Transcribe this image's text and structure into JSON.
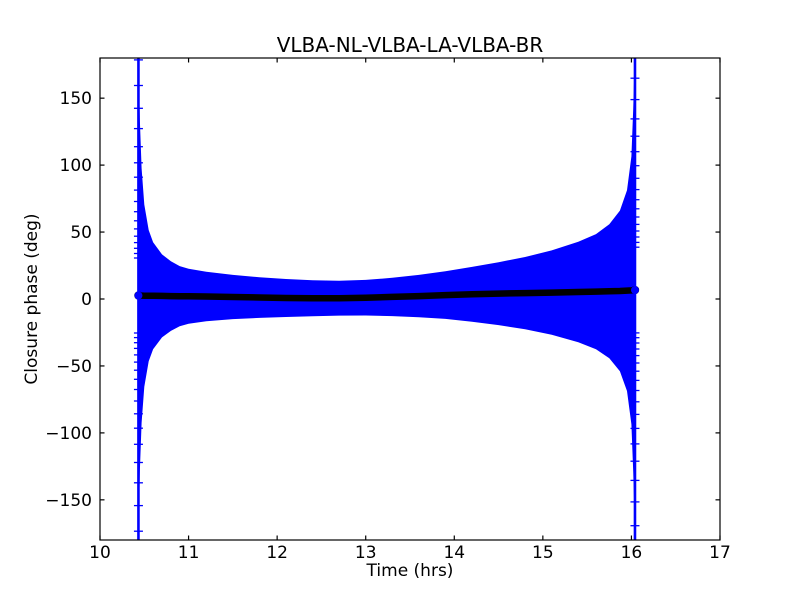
{
  "chart_data": {
    "type": "line",
    "plot_kind": "errorbar",
    "title": "VLBA-NL-VLBA-LA-VLBA-BR",
    "xlabel": "Time (hrs)",
    "ylabel": "Closure phase (deg)",
    "xlim": [
      10,
      17
    ],
    "ylim": [
      -180,
      180
    ],
    "xticks": [
      10,
      11,
      12,
      13,
      14,
      15,
      16,
      17
    ],
    "xtick_labels": [
      "10",
      "11",
      "12",
      "13",
      "14",
      "15",
      "16",
      "17"
    ],
    "yticks": [
      -150,
      -100,
      -50,
      0,
      50,
      100,
      150
    ],
    "ytick_labels": [
      "−150",
      "−100",
      "−50",
      "0",
      "50",
      "100",
      "150"
    ],
    "grid": false,
    "legend": null,
    "background": "#ffffff",
    "band_color": "#0000ff",
    "marker_color": "#000000",
    "frame_color": "#000000",
    "x_data_range": [
      10.434,
      16.04
    ],
    "points_meaning": "t = time in hrs, v = closure phase (deg), e = error-bar half-width (deg)",
    "points": [
      {
        "t": 10.434,
        "v": 2.6,
        "e": 181
      },
      {
        "t": 10.45,
        "v": 2.6,
        "e": 130
      },
      {
        "t": 10.47,
        "v": 2.55,
        "e": 95
      },
      {
        "t": 10.5,
        "v": 2.5,
        "e": 68
      },
      {
        "t": 10.55,
        "v": 2.45,
        "e": 49
      },
      {
        "t": 10.6,
        "v": 2.4,
        "e": 40
      },
      {
        "t": 10.7,
        "v": 2.3,
        "e": 31
      },
      {
        "t": 10.8,
        "v": 2.2,
        "e": 26
      },
      {
        "t": 10.9,
        "v": 2.1,
        "e": 22.5
      },
      {
        "t": 11.0,
        "v": 2.05,
        "e": 20.5
      },
      {
        "t": 11.2,
        "v": 1.85,
        "e": 18.5
      },
      {
        "t": 11.5,
        "v": 1.5,
        "e": 16.5
      },
      {
        "t": 11.8,
        "v": 1.1,
        "e": 15.2
      },
      {
        "t": 12.1,
        "v": 0.75,
        "e": 14.2
      },
      {
        "t": 12.4,
        "v": 0.55,
        "e": 13.4
      },
      {
        "t": 12.7,
        "v": 0.6,
        "e": 13.0
      },
      {
        "t": 13.0,
        "v": 0.95,
        "e": 13.3
      },
      {
        "t": 13.3,
        "v": 1.55,
        "e": 14.3
      },
      {
        "t": 13.6,
        "v": 2.2,
        "e": 15.8
      },
      {
        "t": 13.9,
        "v": 2.9,
        "e": 17.8
      },
      {
        "t": 14.2,
        "v": 3.5,
        "e": 20.5
      },
      {
        "t": 14.5,
        "v": 4.0,
        "e": 23.5
      },
      {
        "t": 14.8,
        "v": 4.4,
        "e": 27
      },
      {
        "t": 15.1,
        "v": 4.8,
        "e": 31.5
      },
      {
        "t": 15.4,
        "v": 5.2,
        "e": 37.5
      },
      {
        "t": 15.6,
        "v": 5.5,
        "e": 43
      },
      {
        "t": 15.75,
        "v": 5.8,
        "e": 50
      },
      {
        "t": 15.87,
        "v": 6.0,
        "e": 60
      },
      {
        "t": 15.95,
        "v": 6.25,
        "e": 75
      },
      {
        "t": 16.0,
        "v": 6.45,
        "e": 100
      },
      {
        "t": 16.02,
        "v": 6.55,
        "e": 135
      },
      {
        "t": 16.04,
        "v": 6.7,
        "e": 181
      }
    ],
    "edge_spikes": [
      {
        "t": 10.434,
        "v": 2.6,
        "cap_min": 28,
        "cap_max": 176,
        "caps": 17
      },
      {
        "t": 16.04,
        "v": 6.7,
        "cap_min": 32,
        "cap_max": 176,
        "caps": 17
      }
    ]
  }
}
